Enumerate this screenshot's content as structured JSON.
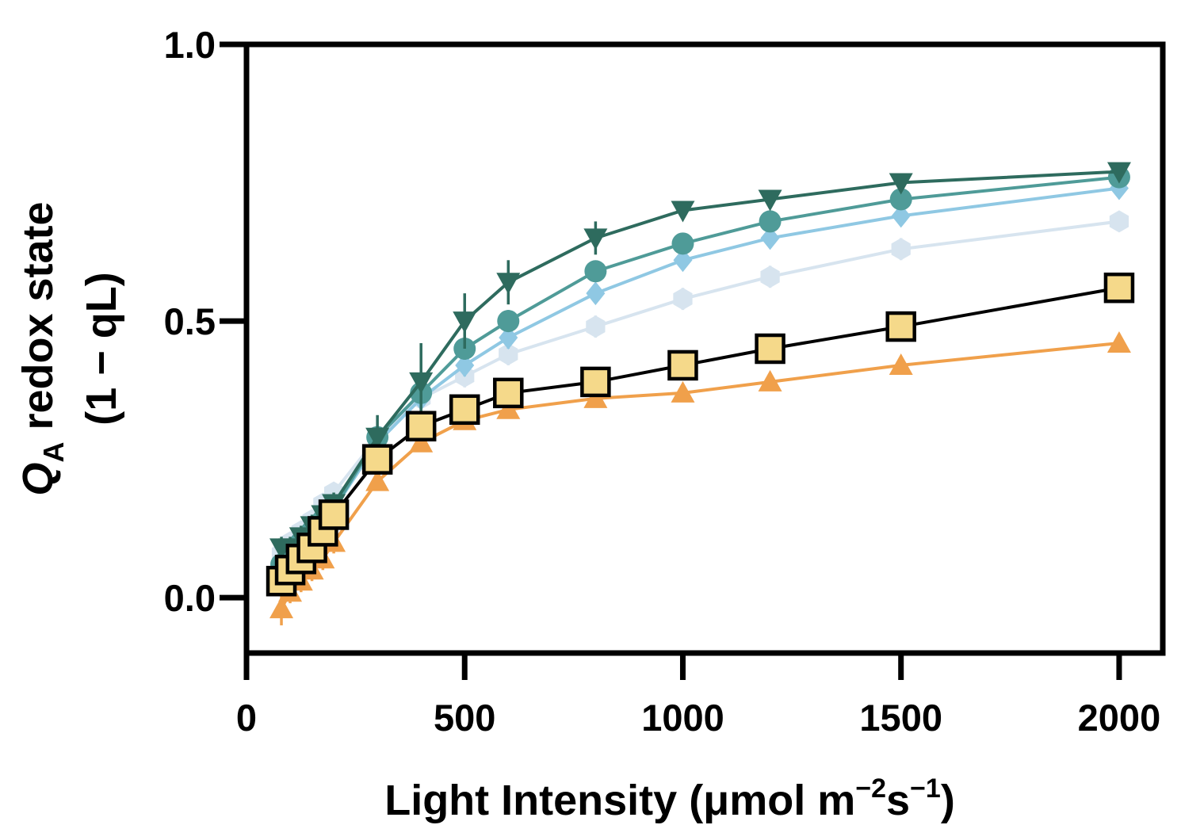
{
  "chart_data": {
    "type": "line",
    "xlabel": {
      "main": "Light Intensity (μmol m",
      "exp1": "−2",
      "mid": "s",
      "exp2": "−1",
      "end": ")"
    },
    "ylabel": {
      "line1_a": "Q",
      "line1_sub": "A",
      "line1_b": " redox state",
      "line2": "(1 − qL)"
    },
    "x_ticks": [
      0,
      500,
      1000,
      1500,
      2000
    ],
    "y_ticks": [
      "0.0",
      "0.5",
      "1.0"
    ],
    "xlim": [
      0,
      2100
    ],
    "ylim": [
      -0.1,
      1.0
    ],
    "grid": false,
    "series": [
      {
        "marker": "triangle-down",
        "color": "#2e6b5e",
        "x": [
          80,
          100,
          125,
          150,
          175,
          200,
          300,
          400,
          500,
          600,
          800,
          1000,
          1200,
          1500,
          2000
        ],
        "y": [
          0.09,
          0.09,
          0.11,
          0.13,
          0.15,
          0.17,
          0.29,
          0.39,
          0.5,
          0.57,
          0.65,
          0.7,
          0.72,
          0.75,
          0.77
        ],
        "err": [
          0.02,
          0.02,
          0.02,
          0.02,
          0.02,
          0.02,
          0.04,
          0.07,
          0.05,
          0.04,
          0.03,
          0.01,
          0.01,
          0.01,
          0.01
        ]
      },
      {
        "marker": "circle",
        "color": "#4f9b98",
        "x": [
          80,
          100,
          125,
          150,
          175,
          200,
          300,
          400,
          500,
          600,
          800,
          1000,
          1200,
          1500,
          2000
        ],
        "y": [
          0.06,
          0.08,
          0.1,
          0.12,
          0.14,
          0.16,
          0.29,
          0.37,
          0.45,
          0.5,
          0.59,
          0.64,
          0.68,
          0.72,
          0.76
        ],
        "err": [
          0.01,
          0.01,
          0.01,
          0.01,
          0.01,
          0.01,
          0.02,
          0.02,
          0.02,
          0.02,
          0.01,
          0.01,
          0.01,
          0.01,
          0.01
        ]
      },
      {
        "marker": "diamond",
        "color": "#8fc8e3",
        "x": [
          80,
          100,
          125,
          150,
          175,
          200,
          300,
          400,
          500,
          600,
          800,
          1000,
          1200,
          1500,
          2000
        ],
        "y": [
          0.06,
          0.08,
          0.1,
          0.12,
          0.14,
          0.16,
          0.28,
          0.36,
          0.42,
          0.47,
          0.55,
          0.61,
          0.65,
          0.69,
          0.74
        ],
        "err": [
          0.01,
          0.01,
          0.01,
          0.01,
          0.01,
          0.01,
          0.02,
          0.02,
          0.02,
          0.02,
          0.01,
          0.01,
          0.01,
          0.01,
          0.01
        ]
      },
      {
        "marker": "hexagon",
        "color": "#d7e4ef",
        "x": [
          80,
          100,
          125,
          150,
          175,
          200,
          300,
          400,
          500,
          600,
          800,
          1000,
          1200,
          1500,
          2000
        ],
        "y": [
          0.08,
          0.1,
          0.12,
          0.14,
          0.17,
          0.19,
          0.29,
          0.36,
          0.4,
          0.44,
          0.49,
          0.54,
          0.58,
          0.63,
          0.68
        ],
        "err": [
          0.01,
          0.01,
          0.01,
          0.01,
          0.01,
          0.01,
          0.02,
          0.02,
          0.02,
          0.02,
          0.02,
          0.02,
          0.02,
          0.02,
          0.01
        ]
      },
      {
        "marker": "triangle-up",
        "color": "#f0a04b",
        "x": [
          80,
          100,
          125,
          150,
          175,
          200,
          300,
          400,
          500,
          600,
          800,
          1000,
          1200,
          1500,
          2000
        ],
        "y": [
          -0.02,
          0.01,
          0.03,
          0.05,
          0.07,
          0.1,
          0.21,
          0.28,
          0.32,
          0.34,
          0.36,
          0.37,
          0.39,
          0.42,
          0.46
        ],
        "err": [
          0.03,
          0.02,
          0.02,
          0.02,
          0.02,
          0.02,
          0.01,
          0.01,
          0.01,
          0.01,
          0.01,
          0.01,
          0.01,
          0.01,
          0.01
        ]
      },
      {
        "marker": "square",
        "color": "#f5d98a",
        "edge": "#000000",
        "line": "#000000",
        "x": [
          80,
          100,
          125,
          150,
          175,
          200,
          300,
          400,
          500,
          600,
          800,
          1000,
          1200,
          1500,
          2000
        ],
        "y": [
          0.03,
          0.05,
          0.07,
          0.09,
          0.12,
          0.15,
          0.25,
          0.31,
          0.34,
          0.37,
          0.39,
          0.42,
          0.45,
          0.49,
          0.56
        ],
        "err": [
          0.01,
          0.01,
          0.01,
          0.01,
          0.01,
          0.01,
          0.01,
          0.01,
          0.01,
          0.01,
          0.01,
          0.01,
          0.01,
          0.01,
          0.01
        ]
      }
    ]
  }
}
